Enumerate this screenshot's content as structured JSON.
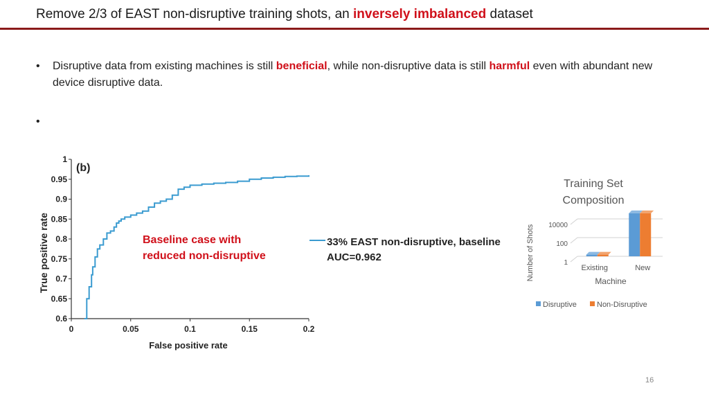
{
  "slide": {
    "title_pre": "Remove 2/3 of EAST non-disruptive training shots, an ",
    "title_highlight": "inversely imbalanced",
    "title_post": " dataset",
    "page_number": "16"
  },
  "bullets": {
    "bullet_1": {
      "part_1": "Disruptive data from existing machines is still ",
      "highlight_1": "beneficial",
      "part_2": ", while non-disruptive data is still ",
      "highlight_2": "harmful",
      "part_3": " even with abundant new device disruptive data."
    },
    "accent_color": "#d0101a"
  },
  "chart_data": [
    {
      "type": "line",
      "panel_label": "(b)",
      "xlabel": "False positive rate",
      "ylabel": "True positive rate",
      "xlim": [
        0,
        0.2
      ],
      "ylim": [
        0.6,
        1.0
      ],
      "xticks": [
        "0",
        "0.05",
        "0.1",
        "0.15",
        "0.2"
      ],
      "yticks": [
        "0.6",
        "0.65",
        "0.7",
        "0.75",
        "0.8",
        "0.85",
        "0.9",
        "0.95",
        "1"
      ],
      "grid": false,
      "legend_position": "right",
      "annotation_line_1": "Baseline case with",
      "annotation_line_2": "reduced non-disruptive",
      "series": [
        {
          "name": "33% EAST non-disruptive, baseline",
          "subtitle": "AUC=0.962",
          "color": "#3a9bd0",
          "x": [
            0.011,
            0.013,
            0.015,
            0.017,
            0.018,
            0.02,
            0.022,
            0.024,
            0.027,
            0.03,
            0.033,
            0.036,
            0.038,
            0.04,
            0.042,
            0.045,
            0.05,
            0.055,
            0.06,
            0.065,
            0.07,
            0.075,
            0.08,
            0.085,
            0.09,
            0.095,
            0.1,
            0.11,
            0.12,
            0.13,
            0.14,
            0.15,
            0.16,
            0.17,
            0.18,
            0.19,
            0.2
          ],
          "y": [
            0.6,
            0.65,
            0.68,
            0.71,
            0.73,
            0.755,
            0.775,
            0.785,
            0.8,
            0.815,
            0.82,
            0.83,
            0.84,
            0.845,
            0.85,
            0.855,
            0.86,
            0.865,
            0.87,
            0.88,
            0.89,
            0.895,
            0.9,
            0.91,
            0.925,
            0.93,
            0.935,
            0.938,
            0.94,
            0.942,
            0.945,
            0.95,
            0.953,
            0.955,
            0.957,
            0.958,
            0.96
          ]
        }
      ]
    },
    {
      "type": "bar",
      "title_line_1": "Training Set",
      "title_line_2": "Composition",
      "xlabel": "Machine",
      "ylabel": "Number of Shots",
      "categories": [
        "Existing",
        "New"
      ],
      "y_scale": "log",
      "yticks": [
        "1",
        "100",
        "10000"
      ],
      "legend_position": "bottom",
      "series": [
        {
          "name": "Disruptive",
          "color": "#5b9bd5",
          "values": [
            1.5,
            40000
          ]
        },
        {
          "name": "Non-Disruptive",
          "color": "#ed7d31",
          "values": [
            1.5,
            40000
          ]
        }
      ]
    }
  ]
}
